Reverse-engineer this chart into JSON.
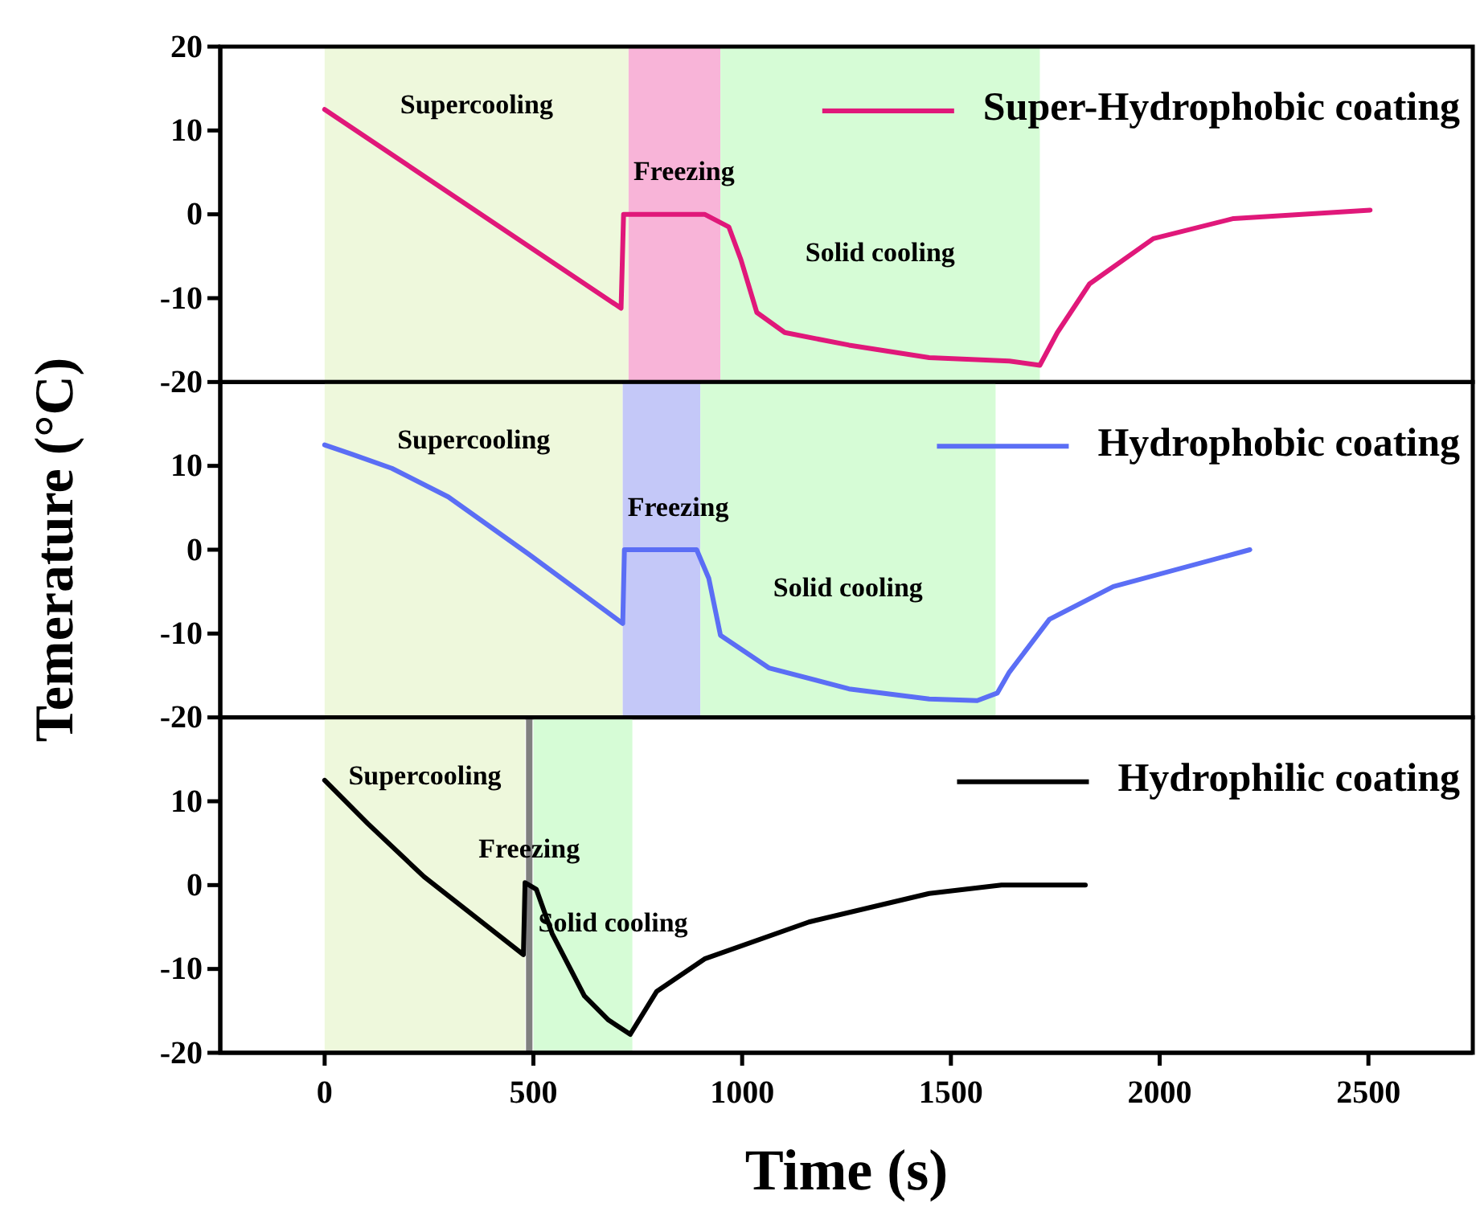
{
  "chart_data": [
    {
      "type": "line",
      "xlim": [
        -250,
        2750
      ],
      "ylim": [
        -20,
        20
      ],
      "yticks": [
        -20,
        -10,
        0,
        10,
        20
      ],
      "tick_labels": "y",
      "legend": "top right",
      "grid": false,
      "series": [
        {
          "name": "Super-Hydrophobic coating",
          "color": "#e0187a",
          "x": [
            0,
            710,
            716,
            910,
            968,
            997,
            1035,
            1102,
            1256,
            1448,
            1640,
            1713,
            1755,
            1832,
            1985,
            2177,
            2504
          ],
          "values": [
            12.5,
            -11.2,
            0,
            0,
            -1.5,
            -5.4,
            -11.7,
            -14.1,
            -15.6,
            -17.1,
            -17.5,
            -18,
            -14.1,
            -8.3,
            -2.9,
            -0.5,
            0.5
          ]
        }
      ],
      "bands": [
        {
          "axis": "x",
          "from": 0,
          "to": 728,
          "color": "#eef8dc",
          "label": "Supercooling"
        },
        {
          "axis": "x",
          "from": 728,
          "to": 948,
          "color": "#f8b4d8",
          "label": "Freezing"
        },
        {
          "axis": "x",
          "from": 948,
          "to": 1713,
          "color": "#d6fcd6",
          "label": "Solid cooling"
        }
      ]
    },
    {
      "type": "line",
      "xlim": [
        -250,
        2750
      ],
      "ylim": [
        -20,
        20
      ],
      "yticks": [
        -20,
        -10,
        0,
        10
      ],
      "tick_labels": "y",
      "legend": "top right",
      "grid": false,
      "ylabel": "Temerature (°C)",
      "series": [
        {
          "name": "Hydrophobic coating",
          "color": "#5b6ef5",
          "x": [
            0,
            65,
            161,
            296,
            488,
            714,
            718,
            891,
            920,
            948,
            1064,
            1256,
            1448,
            1563,
            1611,
            1640,
            1736,
            1889,
            2216
          ],
          "values": [
            12.5,
            11.4,
            9.7,
            6.3,
            -0.5,
            -8.8,
            0,
            0,
            -3.4,
            -10.2,
            -14.1,
            -16.6,
            -17.8,
            -18,
            -17.1,
            -14.6,
            -8.3,
            -4.4,
            0
          ]
        }
      ],
      "bands": [
        {
          "axis": "x",
          "from": 0,
          "to": 714,
          "color": "#eef8dc",
          "label": "Supercooling"
        },
        {
          "axis": "x",
          "from": 714,
          "to": 900,
          "color": "#c4c8f8",
          "label": "Freezing"
        },
        {
          "axis": "x",
          "from": 900,
          "to": 1607,
          "color": "#d6fcd6",
          "label": "Solid cooling"
        }
      ]
    },
    {
      "type": "line",
      "xlim": [
        -250,
        2750
      ],
      "ylim": [
        -20,
        20
      ],
      "yticks": [
        -20,
        -10,
        0,
        10
      ],
      "xticks": [
        0,
        500,
        1000,
        1500,
        2000,
        2500
      ],
      "legend": "top right",
      "grid": false,
      "xlabel": "Time (s)",
      "series": [
        {
          "name": "Hydrophilic coating",
          "color": "#000000",
          "x": [
            0,
            104,
            238,
            476,
            480,
            507,
            545,
            622,
            680,
            732,
            795,
            910,
            1160,
            1448,
            1621,
            1822
          ],
          "values": [
            12.5,
            7.3,
            1,
            -8.3,
            0.3,
            -0.5,
            -5.8,
            -13.2,
            -16.1,
            -17.8,
            -12.7,
            -8.8,
            -4.4,
            -1,
            0,
            0
          ]
        }
      ],
      "bands": [
        {
          "axis": "x",
          "from": 0,
          "to": 480,
          "color": "#eef8dc",
          "label": "Supercooling"
        },
        {
          "axis": "x",
          "from": 500,
          "to": 737,
          "color": "#d6fcd6",
          "label": "Solid cooling"
        }
      ],
      "ref_lines": [
        {
          "axis": "x",
          "value": 490,
          "color": "#808080",
          "label": "Freezing"
        }
      ]
    }
  ]
}
